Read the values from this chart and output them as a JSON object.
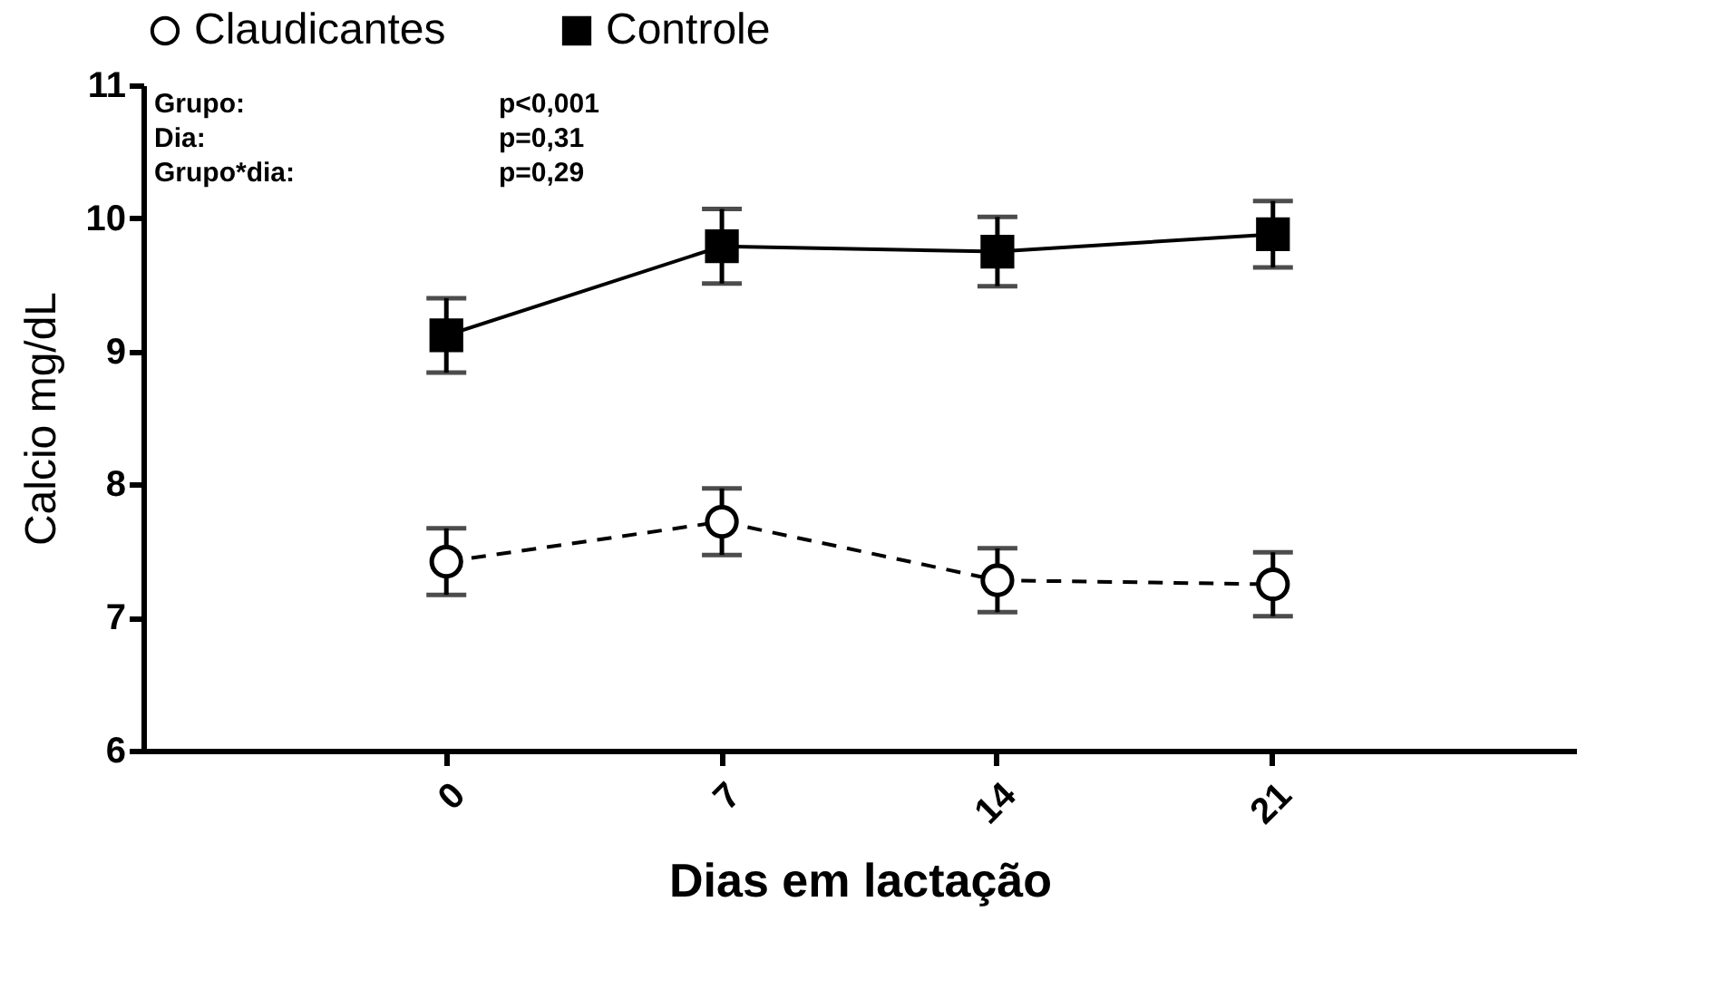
{
  "chart_data": {
    "type": "line",
    "xlabel": "Dias em lactação",
    "ylabel": "Calcio mg/dL",
    "categories": [
      "0",
      "7",
      "14",
      "21"
    ],
    "series": [
      {
        "name": "Claudicantes",
        "color": "#000000",
        "values": [
          7.42,
          7.72,
          7.28,
          7.25
        ],
        "errors": [
          0.25,
          0.25,
          0.24,
          0.24
        ],
        "marker": "circle",
        "line_style": "dashed"
      },
      {
        "name": "Controle",
        "color": "#000000",
        "values": [
          9.12,
          9.79,
          9.75,
          9.88
        ],
        "errors": [
          0.28,
          0.28,
          0.26,
          0.25
        ],
        "marker": "square",
        "line_style": "solid"
      }
    ],
    "ylim": [
      6,
      11
    ],
    "yticks": [
      6,
      7,
      8,
      9,
      10,
      11
    ],
    "grid": false,
    "legend": "top",
    "annotations": [
      "Grupo:",
      "p<0,001",
      "Dia:",
      "p=0,31",
      "Grupo*dia:",
      "p=0,29"
    ]
  }
}
